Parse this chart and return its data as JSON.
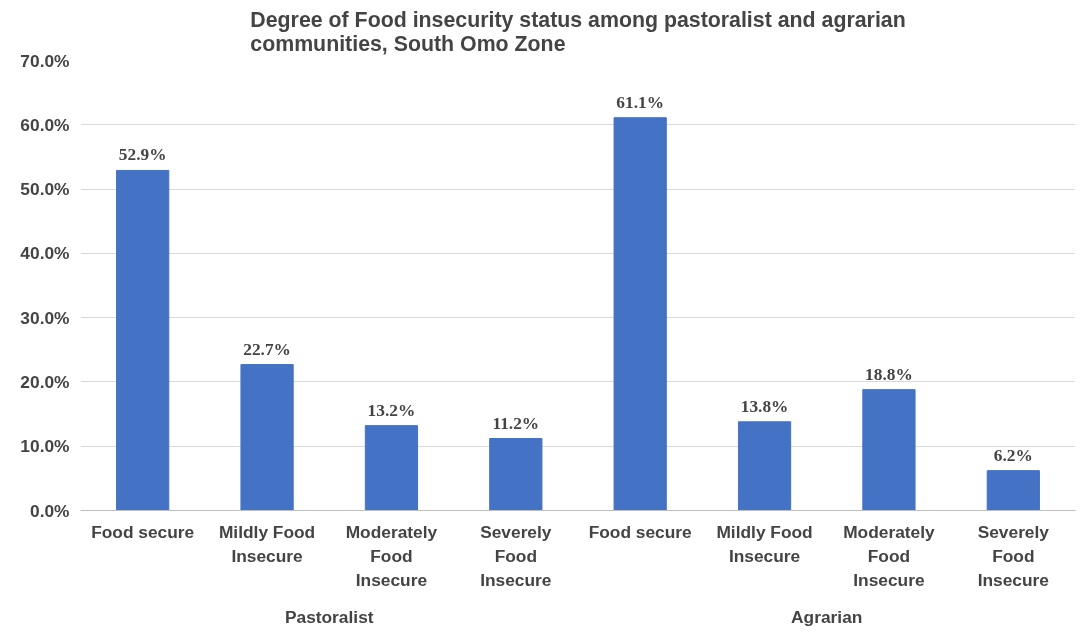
{
  "chart_data": {
    "type": "bar",
    "title": "Degree of Food insecurity status among pastoralist and agrarian communities, South Omo Zone",
    "categories": [
      "Food secure",
      "Mildly Food Insecure",
      "Moderately Food Insecure",
      "Severely Food Insecure",
      "Food secure",
      "Mildly Food Insecure",
      "Moderately Food Insecure",
      "Severely Food Insecure"
    ],
    "values": [
      52.9,
      22.7,
      13.2,
      11.2,
      61.1,
      13.8,
      18.8,
      6.2
    ],
    "value_labels": [
      "52.9%",
      "22.7%",
      "13.2%",
      "11.2%",
      "61.1%",
      "13.8%",
      "18.8%",
      "6.2%"
    ],
    "color": "#4472c4",
    "annotations": [
      "Pastoralist",
      "Agrarian"
    ],
    "ylim": [
      0,
      70
    ],
    "yticks": [
      {
        "value": 0,
        "label": "0.0%"
      },
      {
        "value": 10,
        "label": "10.0%"
      },
      {
        "value": 20,
        "label": "20.0%"
      },
      {
        "value": 30,
        "label": "30.0%"
      },
      {
        "value": 40,
        "label": "40.0%"
      },
      {
        "value": 50,
        "label": "50.0%"
      },
      {
        "value": 60,
        "label": "60.0%"
      },
      {
        "value": 70,
        "label": "70.0%"
      }
    ],
    "grid": "y"
  }
}
